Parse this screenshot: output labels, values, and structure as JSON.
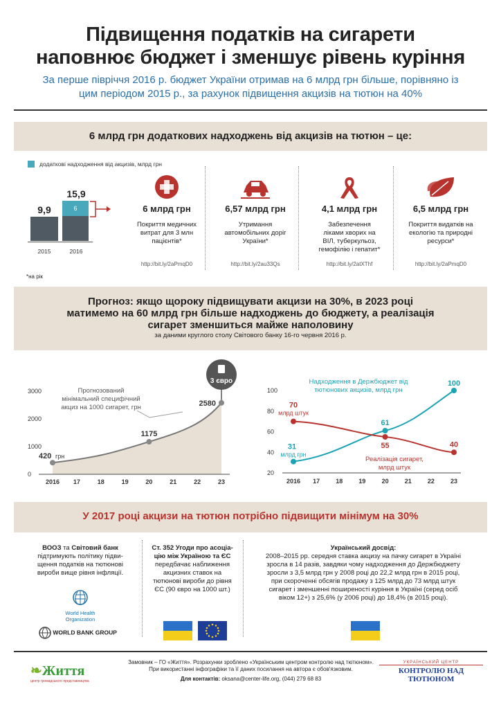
{
  "header": {
    "title_line1": "Підвищення податків на сигарети",
    "title_line2": "наповнює бюджет і зменшує рівень куріння",
    "subtitle_line1": "За перше півріччя 2016 р. бюджет України отримав на 6 млрд грн більше, порівняно із",
    "subtitle_line2": "цим періодом 2015 р., за рахунок підвищення акцизів на тютюн на 40%"
  },
  "section1": {
    "title": "6 млрд грн додаткових надходжень від акцизів на тютюн – це:",
    "legend": "додаткові надходження від акцизів, млрд грн",
    "footnote": "*на рік",
    "bars": [
      {
        "year": "2015",
        "value_label": "9,9",
        "value": 9.9,
        "extra": 0
      },
      {
        "year": "2016",
        "value_label": "15,9",
        "value": 15.9,
        "extra": 6,
        "extra_label": "6"
      }
    ],
    "colors": {
      "base": "#4f5a62",
      "extra": "#4aa8bd",
      "accent": "#b8332d"
    },
    "benefits": [
      {
        "icon": "first-aid-icon",
        "amount": "6 млрд грн",
        "desc1": "Покриття медичних",
        "desc2": "витрат для 3 млн",
        "desc3": "пацієнтів*",
        "desc4": "",
        "link": "http://bit.ly/2aPmqD0"
      },
      {
        "icon": "car-icon",
        "amount": "6,57 млрд грн",
        "desc1": "Утримання",
        "desc2": "автомобільних доріг",
        "desc3": "України*",
        "desc4": "",
        "link": "http://bit.ly/2au33Qs"
      },
      {
        "icon": "ribbon-icon",
        "amount": "4,1 млрд грн",
        "desc1": "Забезпечення",
        "desc2": "ліками хворих на",
        "desc3": "ВІЛ, туберкульоз,",
        "desc4": "гемофілію і гепатит*",
        "link": "http://bit.ly/2atXThf"
      },
      {
        "icon": "leaf-icon",
        "amount": "6,5 млрд грн",
        "desc1": "Покриття видатків на",
        "desc2": "екологію та природні",
        "desc3": "ресурси*",
        "desc4": "",
        "link": "http://bit.ly/2aPmqD0"
      }
    ]
  },
  "section2": {
    "title_line1": "Прогноз: якщо щороку підвищувати акцизи на 30%, в 2023 році",
    "title_line2": "матимемо на 60 млрд грн більше надходжень до бюджету, а реалізація",
    "title_line3": "сигарет зменшиться майже наполовину",
    "source": "за даними круглого столу Світового банку 16-го червня 2016 р."
  },
  "chart_data": [
    {
      "type": "area",
      "title": "Прогнозований мінімальний специфічний акциз на 1000 сигарет, грн",
      "title_line1": "Прогнозований",
      "title_line2": "мінімальний специфічний",
      "title_line3": "акциз на 1000 сигарет, грн",
      "callout": "3 євро",
      "x": [
        "2016",
        "17",
        "18",
        "19",
        "20",
        "21",
        "22",
        "23"
      ],
      "ylim": [
        0,
        3000
      ],
      "yticks": [
        "0",
        "1000",
        "2000",
        "3000"
      ],
      "points": [
        {
          "x": 0,
          "y": 420,
          "label": "420",
          "unit": "грн"
        },
        {
          "x": 4,
          "y": 1175,
          "label": "1175",
          "unit": ""
        },
        {
          "x": 7,
          "y": 2580,
          "label": "2580",
          "unit": ""
        }
      ],
      "color": "#777777",
      "fill": "#e8e0d4"
    },
    {
      "type": "line",
      "x": [
        "2016",
        "17",
        "18",
        "19",
        "20",
        "21",
        "22",
        "23"
      ],
      "ylim": [
        20,
        100
      ],
      "yticks": [
        "20",
        "40",
        "60",
        "80",
        "100"
      ],
      "series": [
        {
          "name": "Надходження в Держбюджет від тютюнових акцизів, млрд грн",
          "name_line1": "Надходження в Держбюджет від",
          "name_line2": "тютюнових акцизів, млрд грн",
          "color": "#1ba3b5",
          "points": [
            {
              "x": 0,
              "y": 31,
              "label": "31",
              "unit": "млрд грн"
            },
            {
              "x": 4,
              "y": 61,
              "label": "61",
              "unit": ""
            },
            {
              "x": 7,
              "y": 100,
              "label": "100",
              "unit": ""
            }
          ]
        },
        {
          "name": "Реалізація сигарет, млрд штук",
          "name_line1": "Реалізація сигарет,",
          "name_line2": "млрд штук",
          "color": "#b8332d",
          "points": [
            {
              "x": 0,
              "y": 70,
              "label": "70",
              "unit": "млрд штук"
            },
            {
              "x": 4,
              "y": 55,
              "label": "55",
              "unit": ""
            },
            {
              "x": 7,
              "y": 40,
              "label": "40",
              "unit": ""
            }
          ]
        }
      ]
    }
  ],
  "section3": {
    "title": "У 2017 році акцизи на тютюн потрібно підвищити мінімум на 30%",
    "col1": {
      "bold1": "ВООЗ",
      "and": " та ",
      "bold2": "Світовий банк",
      "l1": "підтримують політику підви-",
      "l2": "щення податків на тютюнові",
      "l3": "вироби вище рівня інфляції.",
      "who1": "World Health",
      "who2": "Organization",
      "wb": "WORLD BANK GROUP"
    },
    "col2": {
      "h1": "Ст. 352 Угоди про асоціа-",
      "h2": "цію між Україною та ЄС",
      "l1": "передбачає наближення",
      "l2": "акцизних ставок на",
      "l3": "тютюнові вироби до рівня",
      "l4": "ЄС (90 євро на 1000 шт.)"
    },
    "col3": {
      "h": "Український досвід:",
      "l1": "2008–2015 рр. середня ставка акцизу на пачку сигарет в Україні",
      "l2": "зросла в 14 разів, завдяки чому надходження до Держбюджету",
      "l3": "зросли з 3,5 млрд грн у 2008 році до 22,2 млрд грн в 2015 році,",
      "l4": "при скороченні обсягів продажу з 125 млрд до 73 млрд штук",
      "l5": "сигарет і зменшенні поширеності куріння в Україні (серед осіб",
      "l6": "віком 12+) з 25,6% (у 2006 році) до 18,4% (в 2015 році)."
    }
  },
  "footer": {
    "logo_left": "Життя",
    "logo_left_sub": "центр громадського представництва",
    "line1": "Замовник – ГО «Життя». Розрахунки зроблено «Українським центром контролю над тютюном».",
    "line2": "При використанні інфографіки та її даних посилання на автора є обов'язковим.",
    "contacts_label": "Для контактів:",
    "contacts": " oksana@center-life.org, (044) 279 68 83",
    "logo_right_top": "УКРАЇНСЬКИЙ ЦЕНТР",
    "logo_right": "КОНТРОЛЮ НАД ТЮТЮНОМ"
  }
}
